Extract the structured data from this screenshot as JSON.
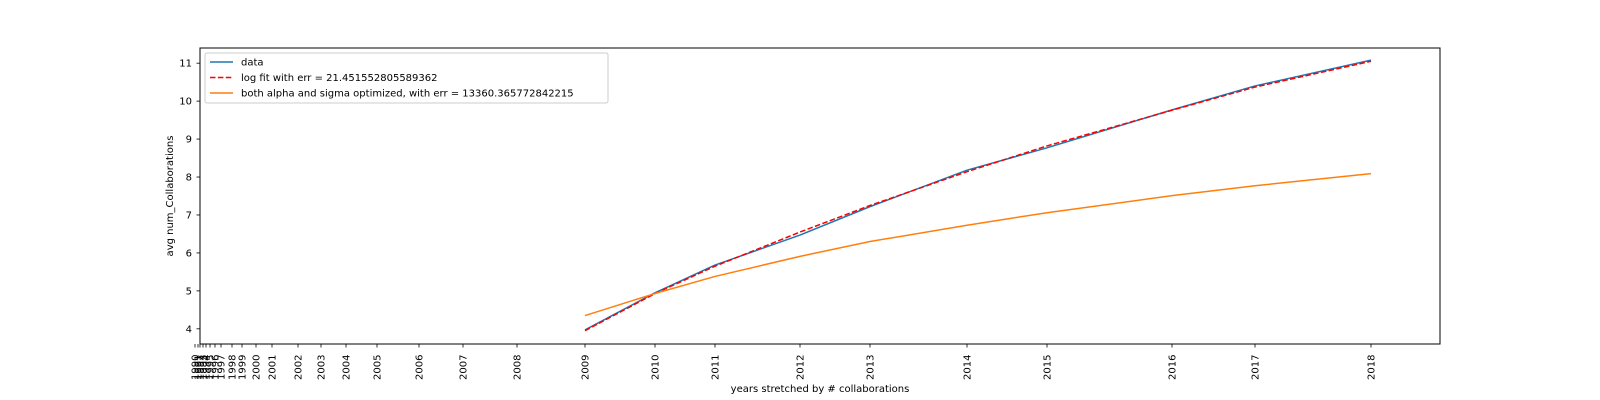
{
  "chart_data": {
    "type": "line",
    "title": "",
    "xlabel": "years stretched by # collaborations",
    "ylabel": "avg num_Collaborations",
    "xlim": [
      1988.3,
      2019.3
    ],
    "ylim": [
      3.6,
      11.4
    ],
    "grid": false,
    "legend_placement": "top-left",
    "x_tick_labels": [
      "1990",
      "1991",
      "1992",
      "1993",
      "1994",
      "1995",
      "1996",
      "1997",
      "1998",
      "1999",
      "2000",
      "2001",
      "2002",
      "2003",
      "2004",
      "2005",
      "2006",
      "2007",
      "2008",
      "2009",
      "2010",
      "2011",
      "2012",
      "2013",
      "2014",
      "2015",
      "2016",
      "2017",
      "2018"
    ],
    "y_tick_labels": [
      "4",
      "5",
      "6",
      "7",
      "8",
      "9",
      "10",
      "11"
    ],
    "series": [
      {
        "name": "data",
        "color": "#1f77b4",
        "style": "solid",
        "points": [
          {
            "year": "2009",
            "value": 3.97
          },
          {
            "year": "2010",
            "value": 4.95
          },
          {
            "year": "2011",
            "value": 5.68
          },
          {
            "year": "2012",
            "value": 6.47
          },
          {
            "year": "2013",
            "value": 7.22
          },
          {
            "year": "2014",
            "value": 8.18
          },
          {
            "year": "2015",
            "value": 8.77
          },
          {
            "year": "2016",
            "value": 9.77
          },
          {
            "year": "2017",
            "value": 10.4
          },
          {
            "year": "2018",
            "value": 11.08
          }
        ]
      },
      {
        "name": "log fit with err = 21.451552805589362",
        "color": "#ff0000",
        "style": "dashed",
        "points": [
          {
            "year": "2009",
            "value": 3.95
          },
          {
            "year": "2010",
            "value": 4.93
          },
          {
            "year": "2011",
            "value": 5.65
          },
          {
            "year": "2012",
            "value": 6.55
          },
          {
            "year": "2013",
            "value": 7.25
          },
          {
            "year": "2014",
            "value": 8.14
          },
          {
            "year": "2015",
            "value": 8.82
          },
          {
            "year": "2016",
            "value": 9.76
          },
          {
            "year": "2017",
            "value": 10.37
          },
          {
            "year": "2018",
            "value": 11.05
          }
        ]
      },
      {
        "name": "both alpha and sigma optimized, with err = 13360.365772842215",
        "color": "#ff7f0e",
        "style": "solid",
        "points": [
          {
            "year": "2009",
            "value": 4.35
          },
          {
            "year": "2010",
            "value": 4.93
          },
          {
            "year": "2011",
            "value": 5.38
          },
          {
            "year": "2012",
            "value": 5.91
          },
          {
            "year": "2013",
            "value": 6.3
          },
          {
            "year": "2014",
            "value": 6.73
          },
          {
            "year": "2015",
            "value": 7.06
          },
          {
            "year": "2016",
            "value": 7.51
          },
          {
            "year": "2017",
            "value": 7.77
          },
          {
            "year": "2018",
            "value": 8.09
          }
        ]
      }
    ]
  }
}
